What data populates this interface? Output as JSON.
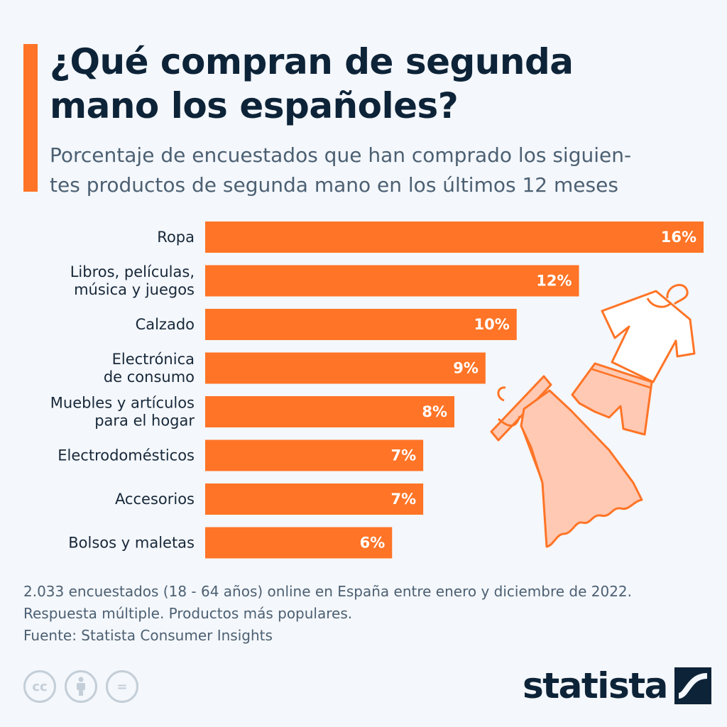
{
  "header": {
    "title_lines": [
      "¿Qué compran de segunda",
      "mano los españoles?"
    ],
    "subtitle_lines": [
      "Porcentaje de encuestados que han comprado los siguien-",
      "tes productos de segunda mano en los últimos 12 meses"
    ]
  },
  "chart_data": {
    "type": "bar",
    "orientation": "horizontal",
    "categories": [
      [
        "Ropa"
      ],
      [
        "Libros, películas,",
        "música y juegos"
      ],
      [
        "Calzado"
      ],
      [
        "Electrónica",
        "de consumo"
      ],
      [
        "Muebles y artículos",
        "para el hogar"
      ],
      [
        "Electrodomésticos"
      ],
      [
        "Accesorios"
      ],
      [
        "Bolsos y maletas"
      ]
    ],
    "values": [
      16,
      12,
      10,
      9,
      8,
      7,
      7,
      6
    ],
    "value_labels": [
      "16%",
      "12%",
      "10%",
      "9%",
      "8%",
      "7%",
      "7%",
      "6%"
    ],
    "unit": "%",
    "xlim": [
      0,
      16
    ],
    "grid": false,
    "bar_color": "#ff7426"
  },
  "footnote": {
    "lines": [
      "2.033 encuestados (18 - 64 años) online en España entre enero y diciembre de 2022.",
      "Respuesta múltiple. Productos más populares.",
      "Fuente: Statista Consumer Insights"
    ]
  },
  "license_icons": [
    "cc-icon",
    "attribution-icon",
    "no-derivatives-icon"
  ],
  "license_glyphs": [
    "cc",
    "="
  ],
  "brand": {
    "logo_text": "statista",
    "logo_color": "#0d2338",
    "accent_color": "#ff7426"
  },
  "illustration": {
    "icons": [
      "tshirt-hanger-icon",
      "shorts-icon",
      "dress-hanger-icon"
    ],
    "fill_color": "#ffc9b3",
    "stroke_color": "#ff7426"
  }
}
